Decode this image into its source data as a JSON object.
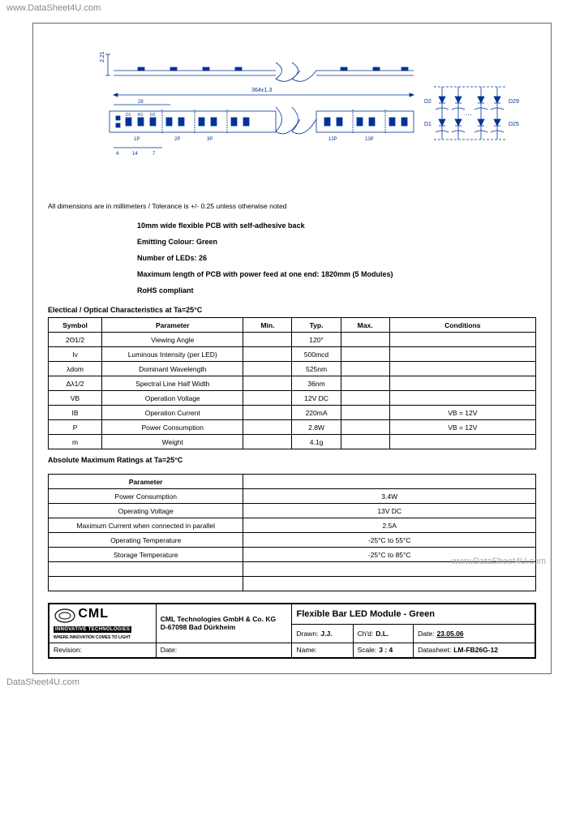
{
  "watermark": {
    "top": "www.DataSheet4U.com",
    "bottom": "DataSheet4U.com",
    "side": "www.DataSheet4U.com"
  },
  "diagram": {
    "dim_vert": "2.21",
    "dim_len": "364±1.3",
    "dim_w": "28",
    "labels_top": [
      "1P",
      "2P",
      "3P",
      "12P",
      "13P"
    ],
    "dims_small": [
      "4",
      "14",
      "7"
    ],
    "refs": [
      "D1",
      "R1",
      "D2"
    ],
    "schem": {
      "d2": "D2",
      "d29": "D29",
      "d1": "D1",
      "d25": "D25"
    }
  },
  "note": "All dimensions are in millimeters / Tolerance is +/- 0.25 unless otherwise noted",
  "features": [
    "10mm wide flexible PCB with self-adhesive back",
    "Emitting Colour: Green",
    "Number of LEDs: 26",
    "Maximum length of PCB with power feed at one end: 1820mm (5 Modules)",
    "RoHS compliant"
  ],
  "t1": {
    "title": "Electical / Optical Characteristics at Ta=25°C",
    "headers": [
      "Symbol",
      "Parameter",
      "Min.",
      "Typ.",
      "Max.",
      "Conditions"
    ],
    "rows": [
      [
        "2Θ1/2",
        "Viewing Angle",
        "",
        "120°",
        "",
        ""
      ],
      [
        "Iv",
        "Luminous Intensity (per LED)",
        "",
        "500mcd",
        "",
        ""
      ],
      [
        "λdom",
        "Dominant Wavelength",
        "",
        "525nm",
        "",
        ""
      ],
      [
        "Δλ1/2",
        "Spectral Line Half Width",
        "",
        "36nm",
        "",
        ""
      ],
      [
        "VB",
        "Operation Voltage",
        "",
        "12V DC",
        "",
        ""
      ],
      [
        "IB",
        "Operation Current",
        "",
        "220mA",
        "",
        "VB = 12V"
      ],
      [
        "P",
        "Power Consumption",
        "",
        "2.8W",
        "",
        "VB = 12V"
      ],
      [
        "m",
        "Weight",
        "",
        "4.1g",
        "",
        ""
      ]
    ]
  },
  "t2": {
    "title": "Absolute Maximum Ratings at Ta=25°C",
    "headers": [
      "Parameter",
      ""
    ],
    "rows": [
      [
        "Power Consumption",
        "3.4W"
      ],
      [
        "Operating Voltage",
        "13V DC"
      ],
      [
        "Maximum Current when connected in parallel",
        "2.5A"
      ],
      [
        "Operating Temperature",
        "-25°C to 55°C"
      ],
      [
        "Storage Temperature",
        "-25°C to 85°C"
      ],
      [
        "",
        ""
      ],
      [
        "",
        ""
      ]
    ]
  },
  "titleblock": {
    "company1": "CML Technologies GmbH & Co. KG",
    "company2": "D-67098 Bad Dürkheim",
    "logo_main": "CML",
    "logo_sub": "INNOVATIVE TECHNOLOGIES",
    "logo_tag": "WHERE INNOVATION COMES TO LIGHT",
    "product": "Flexible Bar LED Module - Green",
    "drawn_l": "Drawn:",
    "drawn_v": "J.J.",
    "chd_l": "Ch'd:",
    "chd_v": "D.L.",
    "date_l": "Date:",
    "date_v": "23.05.06",
    "rev_l": "Revision:",
    "rdate_l": "Date:",
    "name_l": "Name:",
    "scale_l": "Scale:",
    "scale_v": "3 : 4",
    "ds_l": "Datasheet:",
    "ds_v": "LM-FB26G-12"
  }
}
